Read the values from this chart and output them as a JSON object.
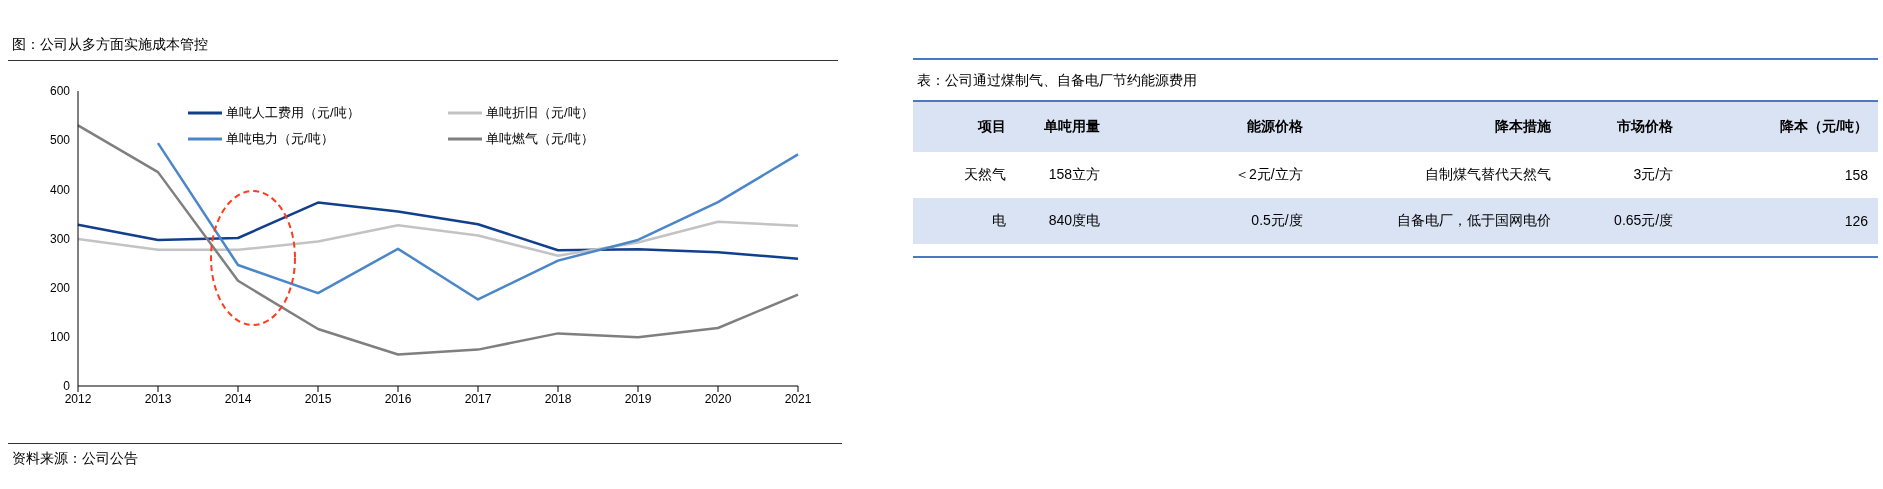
{
  "chart_data": [
    {
      "type": "line",
      "title": "图：公司从多方面实施成本管控",
      "categories": [
        "2012",
        "2013",
        "2014",
        "2015",
        "2016",
        "2017",
        "2018",
        "2019",
        "2020",
        "2021"
      ],
      "series": [
        {
          "name": "单吨人工费用（元/吨）",
          "color": "#123f8c",
          "values": [
            328,
            297,
            301,
            373,
            355,
            329,
            276,
            278,
            272,
            259
          ]
        },
        {
          "name": "单吨折旧（元/吨）",
          "color": "#c3c3c3",
          "values": [
            299,
            277,
            277,
            294,
            327,
            306,
            265,
            292,
            334,
            326
          ]
        },
        {
          "name": "单吨电力（元/吨）",
          "color": "#4a86c8",
          "values": [
            null,
            494,
            246,
            189,
            279,
            176,
            255,
            297,
            374,
            471
          ]
        },
        {
          "name": "单吨燃气（元/吨）",
          "color": "#7f7f7f",
          "values": [
            530,
            435,
            214,
            116,
            64,
            74,
            107,
            99,
            118,
            186
          ]
        }
      ],
      "ylim": [
        0,
        600
      ],
      "yticks": [
        0,
        100,
        200,
        300,
        400,
        500,
        600
      ],
      "legend": "top",
      "marker": "none",
      "line_style": "solid",
      "annotations": [
        "资料来源：公司公告"
      ]
    },
    {
      "type": "other",
      "title": "表：公司通过煤制气、自备电厂节约能源费用",
      "categories": [
        "项目",
        "单吨用量",
        "能源价格",
        "降本措施",
        "市场价格",
        "降本（元/吨）"
      ],
      "cell_labels": [
        [
          "天然气",
          "158立方",
          "＜2元/立方",
          "自制煤气替代天然气",
          "3元/方",
          "158"
        ],
        [
          "电",
          "840度电",
          "0.5元/度",
          "自备电厂，低于国网电价",
          "0.65元/度",
          "126"
        ]
      ]
    }
  ]
}
